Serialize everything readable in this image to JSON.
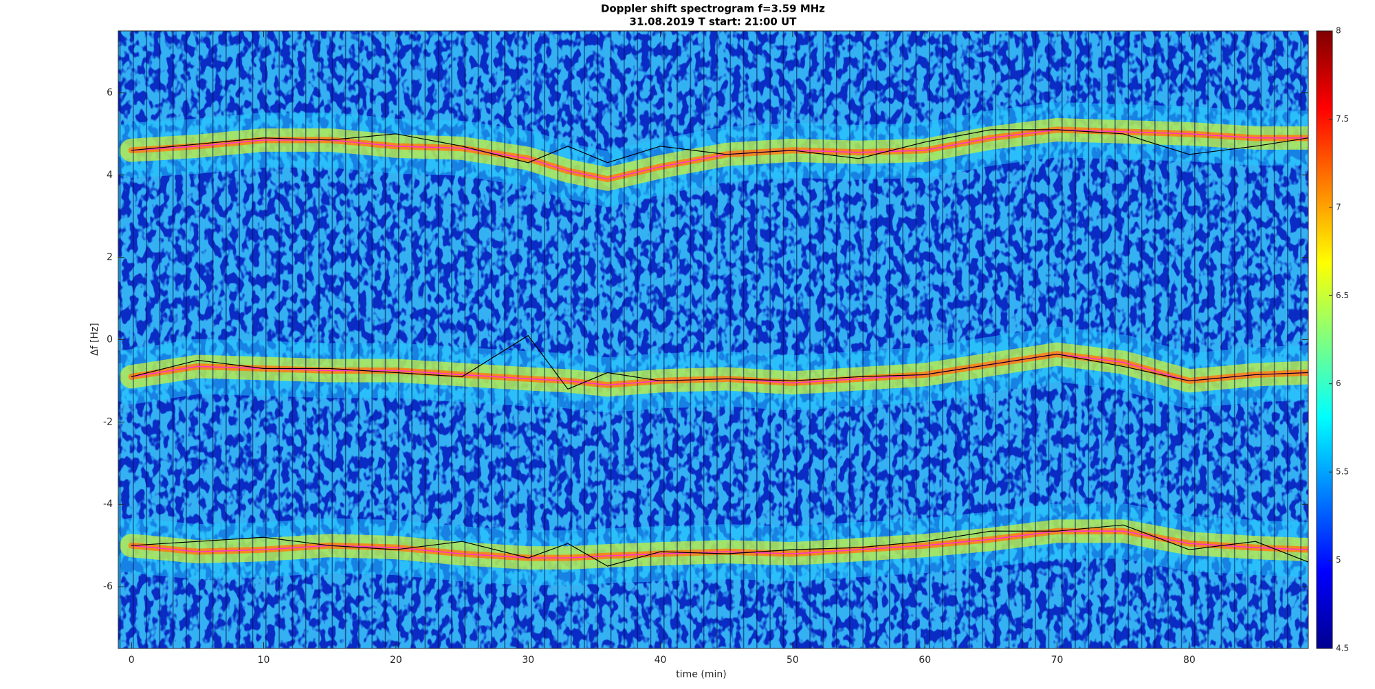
{
  "chart_data": {
    "type": "spectrogram",
    "title": "Doppler shift spectrogram f=3.59 MHz",
    "subtitle": "31.08.2019   T start: 21:00 UT",
    "xlabel": "time (min)",
    "ylabel": "Δf [Hz]",
    "xlim": [
      -1,
      89
    ],
    "ylim": [
      -7.5,
      7.5
    ],
    "xticks": [
      0,
      10,
      20,
      30,
      40,
      50,
      60,
      70,
      80
    ],
    "yticks": [
      -6,
      -4,
      -2,
      0,
      2,
      4,
      6
    ],
    "clim": [
      4.5,
      8
    ],
    "cticks": [
      4.5,
      5,
      5.5,
      6,
      6.5,
      7,
      7.5,
      8
    ],
    "x": [
      0,
      5,
      10,
      15,
      20,
      25,
      30,
      33,
      36,
      40,
      45,
      50,
      55,
      60,
      65,
      70,
      75,
      80,
      85,
      89
    ],
    "series": [
      {
        "color": "#ff33cc",
        "values": [
          4.6,
          4.7,
          4.85,
          4.85,
          4.7,
          4.65,
          4.4,
          4.1,
          3.9,
          4.2,
          4.5,
          4.6,
          4.55,
          4.6,
          4.9,
          5.1,
          5.05,
          5.0,
          4.9,
          4.9
        ]
      },
      {
        "color": "#ff33cc",
        "values": [
          -0.9,
          -0.65,
          -0.7,
          -0.75,
          -0.75,
          -0.85,
          -0.95,
          -1.0,
          -1.1,
          -1.0,
          -0.95,
          -1.05,
          -0.95,
          -0.85,
          -0.6,
          -0.35,
          -0.55,
          -1.0,
          -0.85,
          -0.8
        ]
      },
      {
        "color": "#ff33cc",
        "values": [
          -5.0,
          -5.15,
          -5.1,
          -5.0,
          -5.05,
          -5.2,
          -5.3,
          -5.3,
          -5.25,
          -5.2,
          -5.15,
          -5.2,
          -5.1,
          -5.0,
          -4.85,
          -4.65,
          -4.65,
          -4.95,
          -5.05,
          -5.1
        ]
      },
      {
        "color": "#000000",
        "values": [
          4.6,
          4.75,
          4.9,
          4.85,
          5.0,
          4.7,
          4.3,
          4.7,
          4.3,
          4.7,
          4.5,
          4.6,
          4.4,
          4.8,
          5.1,
          5.1,
          5.0,
          4.5,
          4.7,
          4.9
        ]
      },
      {
        "color": "#000000",
        "values": [
          -0.9,
          -0.5,
          -0.7,
          -0.7,
          -0.8,
          -0.9,
          0.1,
          -1.2,
          -0.8,
          -1.0,
          -0.95,
          -1.0,
          -0.9,
          -0.85,
          -0.6,
          -0.35,
          -0.65,
          -1.0,
          -0.85,
          -0.8
        ]
      },
      {
        "color": "#000000",
        "values": [
          -5.0,
          -4.9,
          -4.8,
          -5.0,
          -5.1,
          -4.9,
          -5.3,
          -4.95,
          -5.5,
          -5.15,
          -5.2,
          -5.1,
          -5.05,
          -4.9,
          -4.65,
          -4.65,
          -4.5,
          -5.1,
          -4.9,
          -5.4
        ]
      }
    ]
  }
}
